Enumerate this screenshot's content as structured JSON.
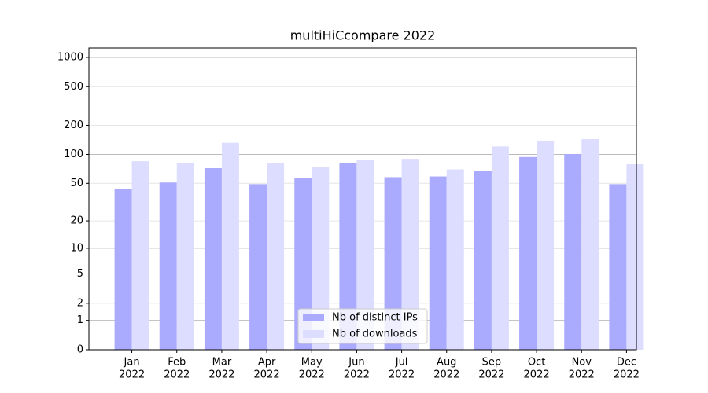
{
  "chart_data": {
    "type": "bar",
    "title": "multiHiCcompare 2022",
    "categories": [
      [
        "Jan",
        "2022"
      ],
      [
        "Feb",
        "2022"
      ],
      [
        "Mar",
        "2022"
      ],
      [
        "Apr",
        "2022"
      ],
      [
        "May",
        "2022"
      ],
      [
        "Jun",
        "2022"
      ],
      [
        "Jul",
        "2022"
      ],
      [
        "Aug",
        "2022"
      ],
      [
        "Sep",
        "2022"
      ],
      [
        "Oct",
        "2022"
      ],
      [
        "Nov",
        "2022"
      ],
      [
        "Dec",
        "2022"
      ]
    ],
    "series": [
      {
        "name": "Nb of distinct IPs",
        "color": "#aaaaff",
        "values": [
          44,
          51,
          72,
          49,
          57,
          81,
          58,
          59,
          67,
          94,
          101,
          49
        ]
      },
      {
        "name": "Nb of downloads",
        "color": "#ddddff",
        "values": [
          85,
          82,
          132,
          82,
          74,
          88,
          90,
          70,
          121,
          139,
          144,
          79
        ]
      }
    ],
    "yscale": "log1p",
    "ylim": [
      0,
      1250
    ],
    "yticks": [
      0,
      1,
      2,
      5,
      10,
      20,
      50,
      100,
      200,
      500,
      1000
    ],
    "grid": true,
    "legend": "lower center"
  }
}
